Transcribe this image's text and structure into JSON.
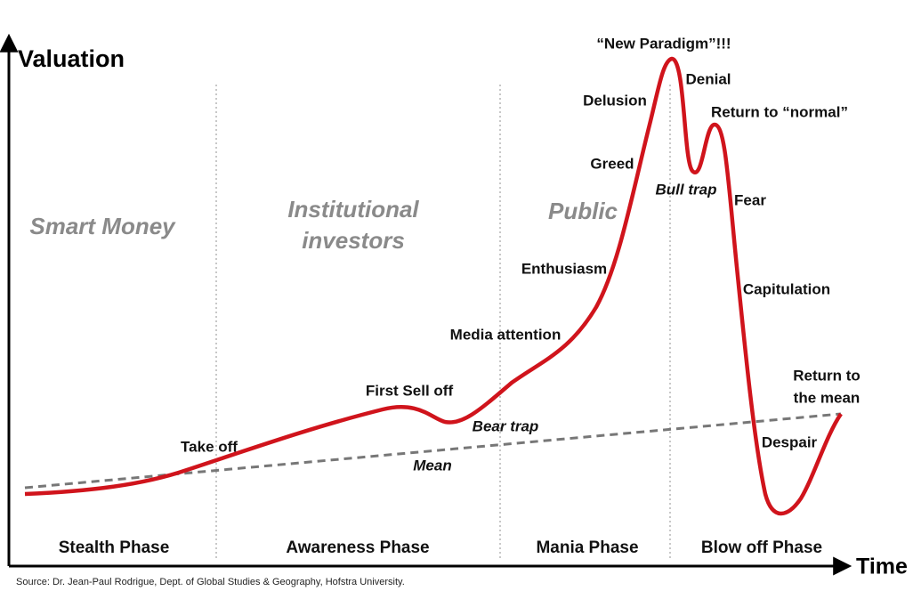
{
  "axes": {
    "y_label": "Valuation",
    "x_label": "Time"
  },
  "groups": [
    "Smart Money",
    "Institutional",
    "investors",
    "Public"
  ],
  "phases": [
    "Stealth Phase",
    "Awareness Phase",
    "Mania Phase",
    "Blow off Phase"
  ],
  "annotations": [
    "Take off",
    "First Sell off",
    "Bear trap",
    "Mean",
    "Media attention",
    "Enthusiasm",
    "Greed",
    "Delusion",
    "“New Paradigm”!!!",
    "Denial",
    "Return to “normal”",
    "Bull trap",
    "Fear",
    "Capitulation",
    "Return to",
    "the mean",
    "Despair"
  ],
  "source": "Source: Dr. Jean-Paul Rodrigue, Dept. of Global Studies & Geography, Hofstra University."
}
